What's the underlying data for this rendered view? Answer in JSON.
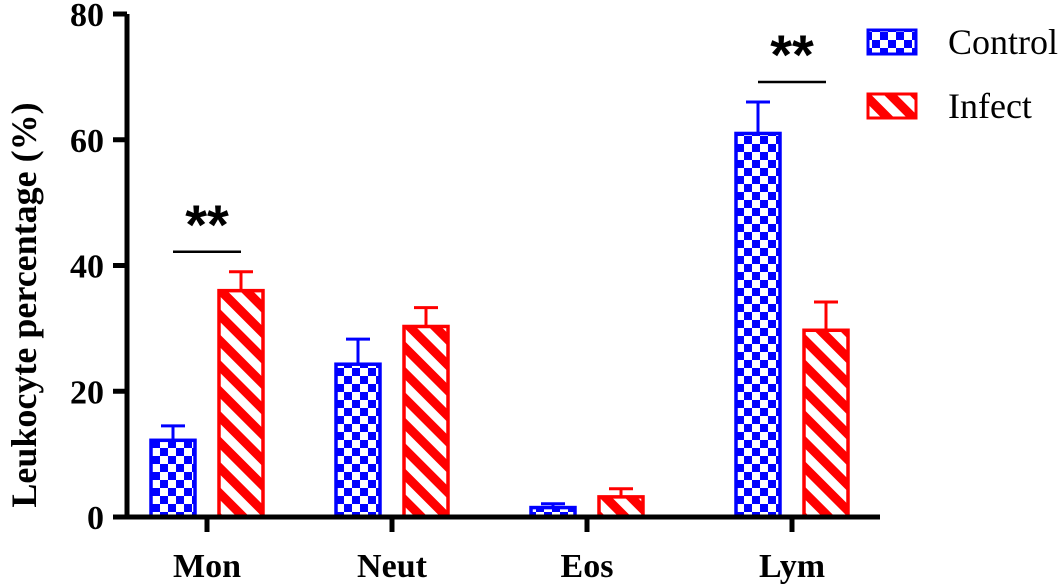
{
  "chart_data": {
    "type": "bar",
    "categories": [
      "Mon",
      "Neut",
      "Eos",
      "Lym"
    ],
    "series": [
      {
        "name": "Control",
        "color": "#0000ff",
        "pattern": "checkerboard",
        "values": [
          12.2,
          24.3,
          1.5,
          61.0
        ],
        "errors": [
          2.3,
          4.0,
          0.6,
          5.0
        ]
      },
      {
        "name": "Infect",
        "color": "#ff0000",
        "pattern": "diagonal-stripes",
        "values": [
          36.0,
          30.3,
          3.2,
          29.7
        ],
        "errors": [
          3.0,
          3.0,
          1.3,
          4.5
        ]
      }
    ],
    "ylabel": "Leukocyte percentage (%)",
    "xlabel": "",
    "ylim": [
      0,
      80
    ],
    "yticks": [
      0,
      20,
      40,
      60,
      80
    ],
    "legend_position": "top-right",
    "grid": false,
    "annotations": [
      {
        "category": "Mon",
        "text": "**"
      },
      {
        "category": "Lym",
        "text": "**"
      }
    ]
  }
}
